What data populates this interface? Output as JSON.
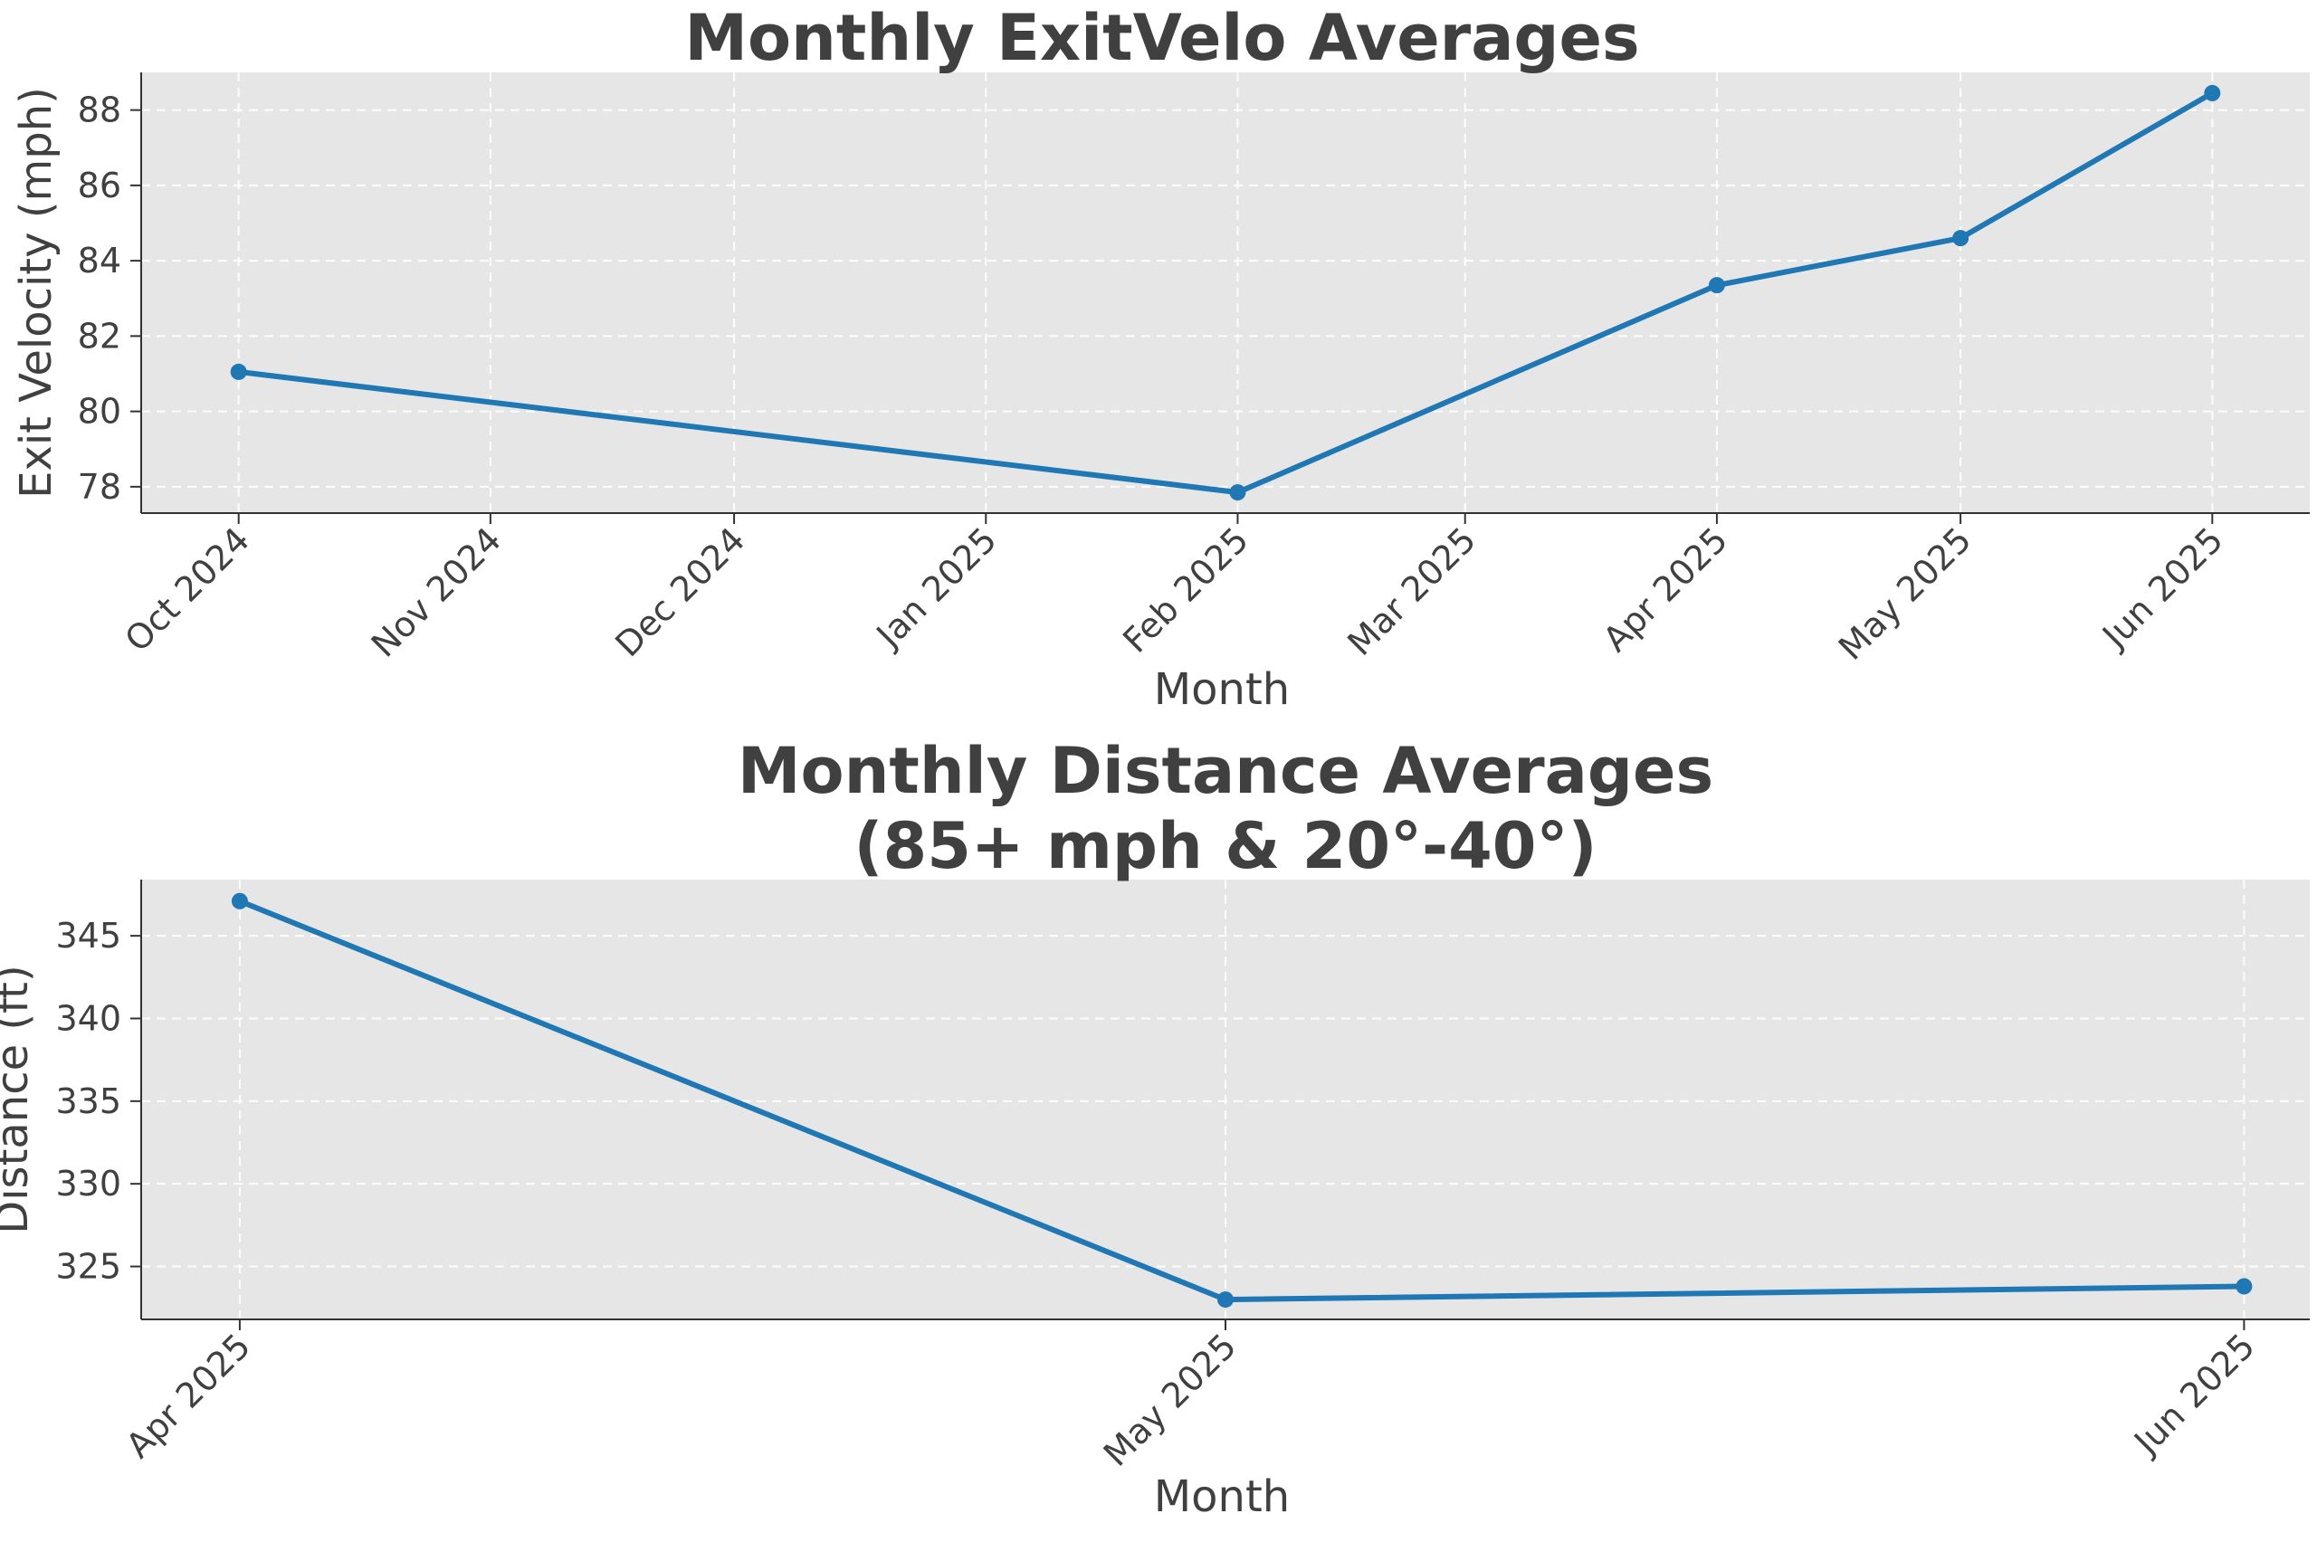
{
  "chart_data": [
    {
      "type": "line",
      "title": "Monthly ExitVelo Averages",
      "xlabel": "Month",
      "ylabel": "Exit Velocity (mph)",
      "x": [
        "2024-10-01",
        "2025-02-01",
        "2025-04-01",
        "2025-05-01",
        "2025-06-01"
      ],
      "x_ticks": [
        "Oct 2024",
        "Nov 2024",
        "Dec 2024",
        "Jan 2025",
        "Feb 2025",
        "Mar 2025",
        "Apr 2025",
        "May 2025",
        "Jun 2025"
      ],
      "x_tick_dates": [
        "2024-10-01",
        "2024-11-01",
        "2024-12-01",
        "2025-01-01",
        "2025-02-01",
        "2025-03-01",
        "2025-04-01",
        "2025-05-01",
        "2025-06-01"
      ],
      "xlim": [
        "2024-09-19",
        "2025-06-13"
      ],
      "y_ticks": [
        78,
        80,
        82,
        84,
        86,
        88
      ],
      "ylim": [
        77.3,
        89.0
      ],
      "series": [
        {
          "values": [
            81.05,
            77.85,
            83.35,
            84.6,
            88.45
          ],
          "color": "#1f77b4"
        }
      ],
      "grid": true
    },
    {
      "type": "line",
      "title": "Monthly Distance Averages\n(85+ mph & 20°-40°)",
      "title_lines": [
        "Monthly Distance Averages",
        "(85+ mph & 20°-40°)"
      ],
      "xlabel": "Month",
      "ylabel": "Distance (ft)",
      "x": [
        "2025-04-01",
        "2025-05-01",
        "2025-06-01"
      ],
      "x_ticks": [
        "Apr 2025",
        "May 2025",
        "Jun 2025"
      ],
      "x_tick_dates": [
        "2025-04-01",
        "2025-05-01",
        "2025-06-01"
      ],
      "xlim": [
        "2025-03-29",
        "2025-06-03"
      ],
      "y_ticks": [
        325,
        330,
        335,
        340,
        345
      ],
      "ylim": [
        321.8,
        348.4
      ],
      "series": [
        {
          "values": [
            347.1,
            323.0,
            323.8
          ],
          "color": "#1f77b4"
        }
      ],
      "grid": true
    }
  ]
}
